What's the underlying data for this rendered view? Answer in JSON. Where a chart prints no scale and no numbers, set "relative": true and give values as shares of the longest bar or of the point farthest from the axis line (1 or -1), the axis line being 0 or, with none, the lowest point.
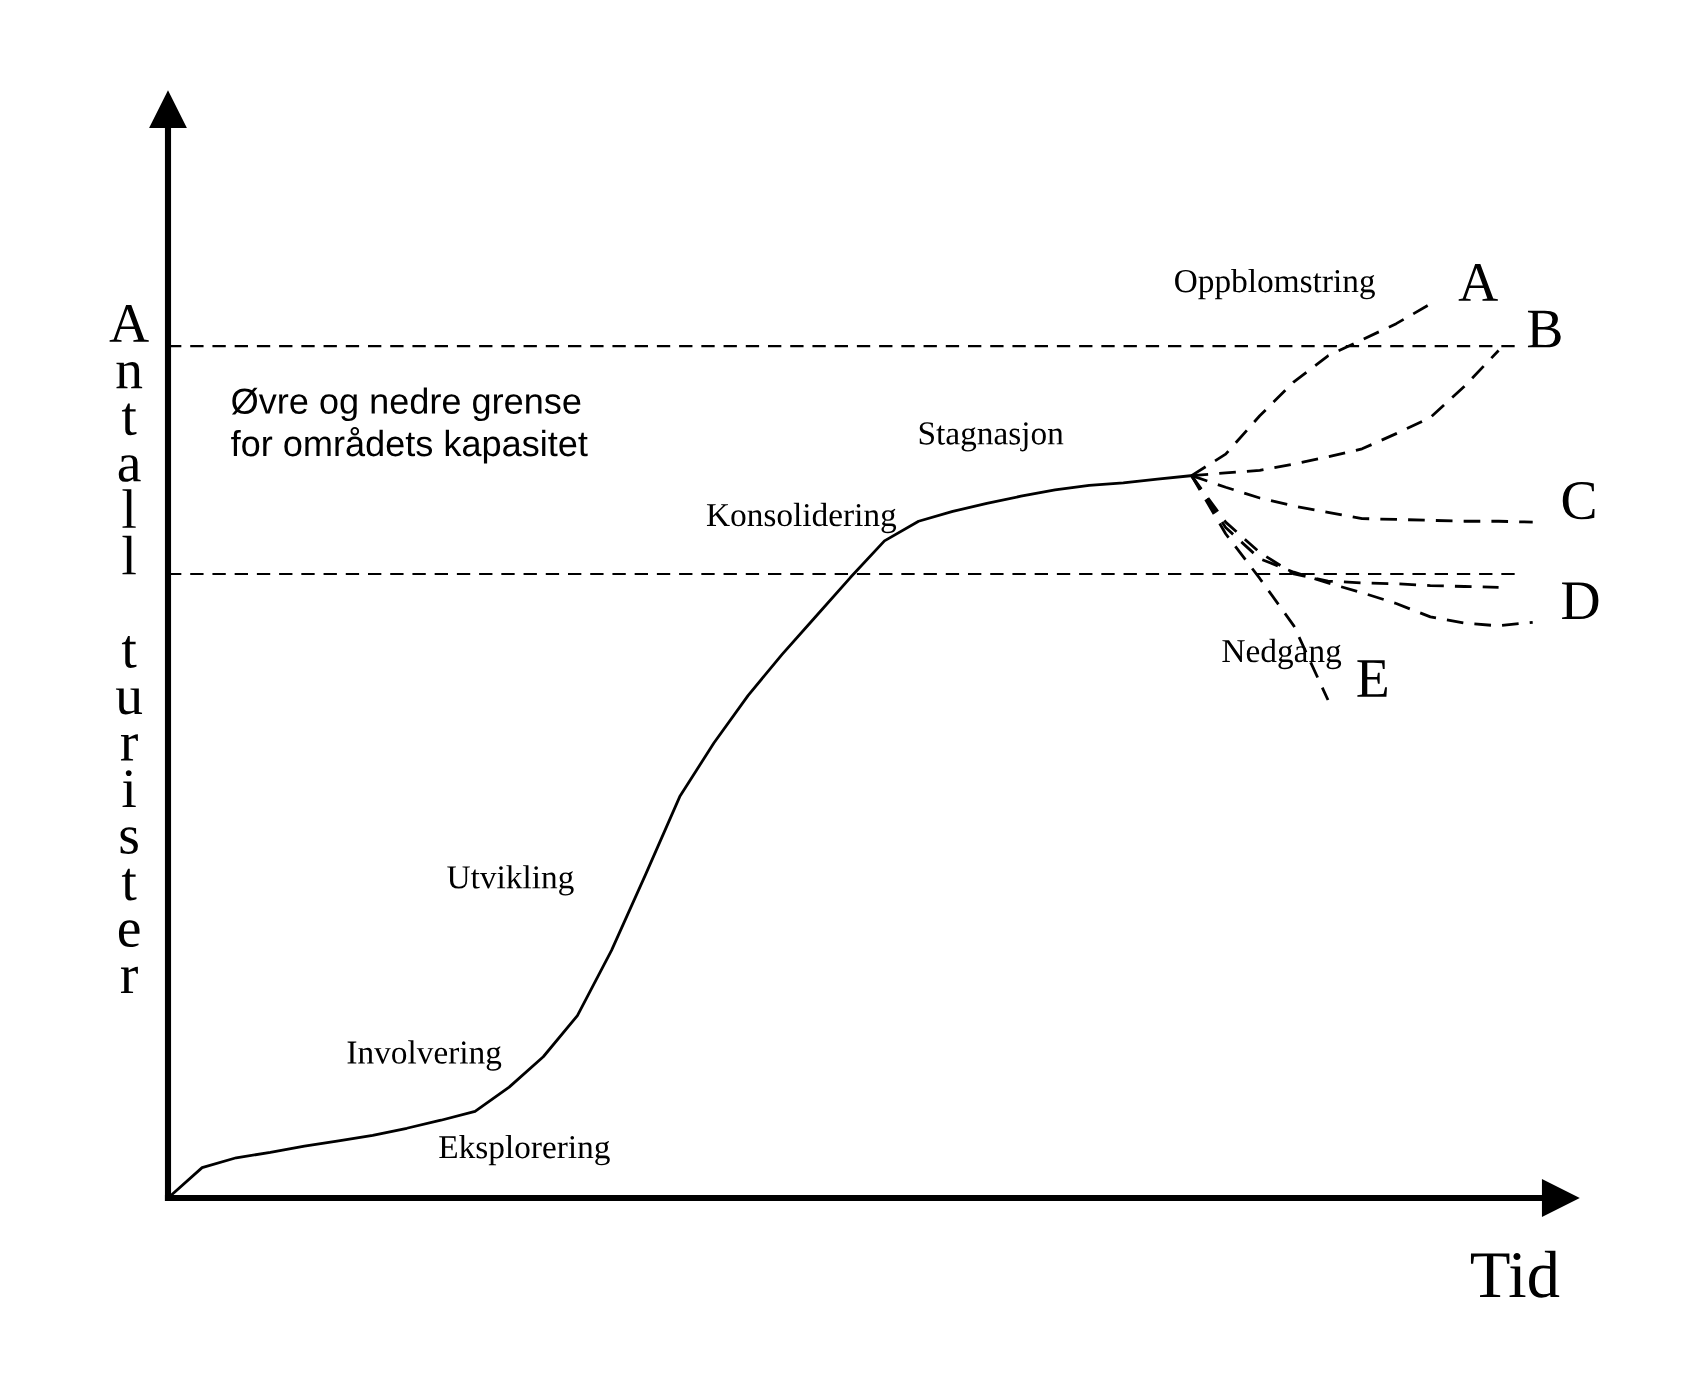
{
  "chart_data": {
    "type": "line",
    "relative": true,
    "xlabel": "Tid",
    "ylabel": "Antall turister",
    "grid": false,
    "legend": false,
    "marker": "none",
    "categories": [
      null,
      null,
      null,
      null,
      null,
      null,
      null,
      null,
      null,
      null,
      null,
      null,
      null,
      null,
      null,
      null,
      null,
      null,
      null,
      null,
      null,
      null,
      null,
      null,
      null,
      null,
      null,
      null,
      null,
      null,
      null,
      null,
      null,
      null,
      null,
      null,
      null,
      null,
      null,
      null,
      null
    ],
    "series": [
      {
        "color": "#000000",
        "line_style": "solid",
        "values": [
          0,
          0.034,
          0.045,
          0.051,
          0.058,
          0.064,
          0.07,
          0.078,
          0.087,
          0.097,
          0.124,
          0.158,
          0.204,
          0.277,
          0.362,
          0.449,
          0.509,
          0.562,
          0.608,
          0.651,
          0.694,
          0.735,
          0.757,
          0.768,
          0.777,
          0.785,
          0.792,
          0.797,
          0.8,
          0.804,
          0.808,
          null,
          null,
          null,
          null,
          null,
          null,
          null,
          null,
          null,
          null
        ]
      },
      {
        "name": "A",
        "color": "#000000",
        "line_style": "dashed",
        "values": [
          null,
          null,
          null,
          null,
          null,
          null,
          null,
          null,
          null,
          null,
          null,
          null,
          null,
          null,
          null,
          null,
          null,
          null,
          null,
          null,
          null,
          null,
          null,
          null,
          null,
          null,
          null,
          null,
          null,
          null,
          0.808,
          0.832,
          0.875,
          0.913,
          0.942,
          0.96,
          0.978,
          1.0,
          null,
          null,
          null
        ]
      },
      {
        "name": "B",
        "color": "#000000",
        "line_style": "dashed",
        "values": [
          null,
          null,
          null,
          null,
          null,
          null,
          null,
          null,
          null,
          null,
          null,
          null,
          null,
          null,
          null,
          null,
          null,
          null,
          null,
          null,
          null,
          null,
          null,
          null,
          null,
          null,
          null,
          null,
          null,
          null,
          0.808,
          0.811,
          0.814,
          0.821,
          0.829,
          0.838,
          0.855,
          0.873,
          0.908,
          0.948,
          null
        ]
      },
      {
        "name": "C",
        "color": "#000000",
        "line_style": "dashed",
        "values": [
          null,
          null,
          null,
          null,
          null,
          null,
          null,
          null,
          null,
          null,
          null,
          null,
          null,
          null,
          null,
          null,
          null,
          null,
          null,
          null,
          null,
          null,
          null,
          null,
          null,
          null,
          null,
          null,
          null,
          null,
          0.808,
          0.795,
          0.783,
          0.774,
          0.767,
          0.76,
          0.759,
          0.758,
          0.757,
          0.757,
          0.756
        ]
      },
      {
        "name": "D",
        "color": "#000000",
        "line_style": "dashed",
        "values": [
          null,
          null,
          null,
          null,
          null,
          null,
          null,
          null,
          null,
          null,
          null,
          null,
          null,
          null,
          null,
          null,
          null,
          null,
          null,
          null,
          null,
          null,
          null,
          null,
          null,
          null,
          null,
          null,
          null,
          null,
          0.808,
          0.75,
          0.715,
          0.7,
          0.688,
          0.677,
          0.665,
          0.65,
          0.643,
          0.64,
          0.644
        ]
      },
      {
        "color": "#000000",
        "line_style": "dashed",
        "values": [
          null,
          null,
          null,
          null,
          null,
          null,
          null,
          null,
          null,
          null,
          null,
          null,
          null,
          null,
          null,
          null,
          null,
          null,
          null,
          null,
          null,
          null,
          null,
          null,
          null,
          null,
          null,
          null,
          null,
          null,
          0.808,
          0.756,
          0.722,
          0.698,
          0.69,
          0.688,
          0.687,
          0.685,
          0.684,
          0.683,
          null
        ]
      },
      {
        "name": "E",
        "color": "#000000",
        "line_style": "dashed",
        "values": [
          null,
          null,
          null,
          null,
          null,
          null,
          null,
          null,
          null,
          null,
          null,
          null,
          null,
          null,
          null,
          null,
          null,
          null,
          null,
          null,
          null,
          null,
          null,
          null,
          null,
          null,
          null,
          null,
          null,
          null,
          0.808,
          0.743,
          0.693,
          0.64,
          0.557,
          null,
          null,
          null,
          null,
          null,
          null
        ]
      }
    ],
    "ref_lines": [
      {
        "axis": "y",
        "value": 0.953,
        "color": "#000000",
        "line_style": "dashed"
      },
      {
        "axis": "y",
        "value": 0.698,
        "color": "#000000",
        "line_style": "dashed"
      }
    ],
    "annotations": [
      "Øvre og nedre grense\nfor områdets kapasitet",
      "Eksplorering",
      "Involvering",
      "Utvikling",
      "Konsolidering",
      "Stagnasjon",
      "Oppblomstring",
      "Nedgang"
    ]
  }
}
